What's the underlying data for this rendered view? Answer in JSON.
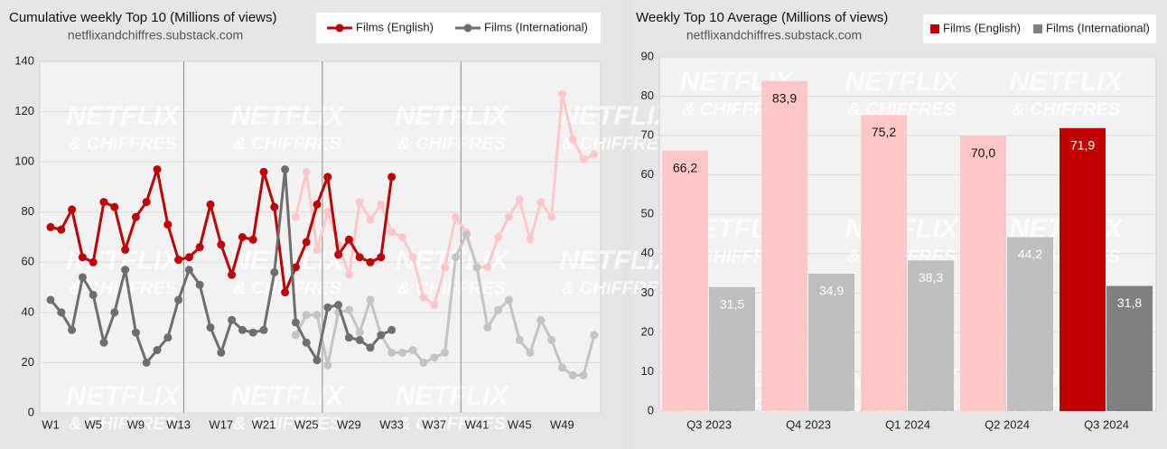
{
  "watermark": {
    "line1": "NETFLIX",
    "line2": "& CHIFFRES"
  },
  "chart_data": [
    {
      "type": "line",
      "title": "Cumulative weekly Top 10 (Millions of views)",
      "subtitle": "netflixandchiffres.substack.com",
      "categories": [
        "W1",
        null,
        null,
        null,
        "W5",
        null,
        null,
        null,
        "W9",
        null,
        null,
        null,
        "W13",
        null,
        null,
        null,
        "W17",
        null,
        null,
        null,
        "W21",
        null,
        null,
        null,
        "W25",
        null,
        null,
        null,
        "W29",
        null,
        null,
        null,
        "W33",
        null,
        null,
        null,
        "W37",
        null,
        null,
        null,
        "W41",
        null,
        null,
        null,
        "W45",
        null,
        null,
        null,
        "W49",
        null,
        null,
        null
      ],
      "series": [
        {
          "name": "Films (English)",
          "color": "#c00000",
          "values": [
            74,
            73,
            81,
            62,
            60,
            84,
            82,
            65,
            78,
            84,
            97,
            75,
            61,
            62,
            66,
            83,
            67,
            55,
            70,
            69,
            96,
            82,
            48,
            58,
            68,
            83,
            94,
            63,
            69,
            62,
            60,
            62,
            94,
            null,
            null,
            null,
            null,
            null,
            null,
            null,
            null,
            null,
            null,
            null,
            null,
            null,
            null,
            null,
            null,
            null,
            null,
            null
          ]
        },
        {
          "name": "Films (International)",
          "color": "#6e6e6e",
          "values": [
            45,
            40,
            33,
            54,
            47,
            28,
            40,
            57,
            32,
            20,
            25,
            30,
            45,
            57,
            51,
            34,
            24,
            37,
            33,
            32,
            33,
            56,
            97,
            36,
            28,
            21,
            42,
            43,
            30,
            29,
            26,
            31,
            33,
            null,
            null,
            null,
            null,
            null,
            null,
            null,
            null,
            null,
            null,
            null,
            null,
            null,
            null,
            null,
            null,
            null,
            null,
            null
          ]
        },
        {
          "color": "#ffc7c7",
          "values": [
            null,
            null,
            null,
            null,
            null,
            null,
            null,
            null,
            null,
            null,
            null,
            null,
            null,
            null,
            null,
            null,
            null,
            null,
            null,
            null,
            null,
            null,
            null,
            78,
            96,
            65,
            80,
            67,
            55,
            84,
            77,
            83,
            72,
            70,
            62,
            46,
            43,
            58,
            78,
            72,
            58,
            58,
            70,
            78,
            85,
            69,
            84,
            78,
            127,
            109,
            101,
            103
          ]
        },
        {
          "color": "#c4c4c4",
          "values": [
            null,
            null,
            null,
            null,
            null,
            null,
            null,
            null,
            null,
            null,
            null,
            null,
            null,
            null,
            null,
            null,
            null,
            null,
            null,
            null,
            null,
            null,
            null,
            31,
            39,
            39,
            19,
            40,
            41,
            32,
            45,
            31,
            24,
            24,
            25,
            20,
            22,
            24,
            62,
            71,
            58,
            34,
            41,
            45,
            29,
            24,
            37,
            29,
            18,
            15,
            15,
            31
          ]
        }
      ],
      "ylim": [
        0,
        140
      ],
      "yticks": [
        0,
        20,
        40,
        60,
        80,
        100,
        120,
        140
      ],
      "grid": true
    },
    {
      "type": "bar",
      "title": "Weekly Top 10 Average (Millions of views)",
      "subtitle": "netflixandchiffres.substack.com",
      "categories": [
        "Q3 2023",
        "Q4 2023",
        "Q1 2024",
        "Q2 2024",
        "Q3 2024"
      ],
      "series": [
        {
          "name": "Films (English)",
          "color": "#c00000",
          "colors": [
            "#ffc7c7",
            "#ffc7c7",
            "#ffc7c7",
            "#ffc7c7",
            "#c00000"
          ],
          "values": [
            66.2,
            83.9,
            75.2,
            70.0,
            71.9
          ],
          "value_labels": [
            "66,2",
            "83,9",
            "75,2",
            "70,0",
            "71,9"
          ]
        },
        {
          "name": "Films (International)",
          "color": "#808080",
          "colors": [
            "#bfbfbf",
            "#bfbfbf",
            "#bfbfbf",
            "#bfbfbf",
            "#808080"
          ],
          "values": [
            31.5,
            34.9,
            38.3,
            44.2,
            31.8
          ],
          "value_labels": [
            "31,5",
            "34,9",
            "38,3",
            "44,2",
            "31,8"
          ]
        }
      ],
      "ylim": [
        0,
        90
      ],
      "yticks": [
        0,
        10,
        20,
        30,
        40,
        50,
        60,
        70,
        80,
        90
      ],
      "grid": true
    }
  ]
}
